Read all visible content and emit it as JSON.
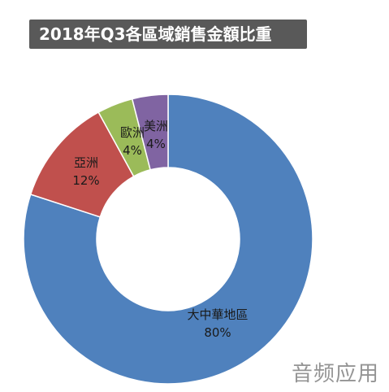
{
  "chart_data": {
    "type": "pie",
    "title": "2018年Q3各區域銷售金額比重",
    "donut": true,
    "categories": [
      "大中華地區",
      "亞洲",
      "歐洲",
      "美洲"
    ],
    "values": [
      80,
      12,
      4,
      4
    ],
    "value_labels": [
      "80%",
      "12%",
      "4%",
      "4%"
    ],
    "colors": [
      "#4f81bd",
      "#c0504d",
      "#9bbb59",
      "#8064a2"
    ],
    "start_angle_deg": 0,
    "direction": "clockwise"
  },
  "watermark": "音频应用"
}
